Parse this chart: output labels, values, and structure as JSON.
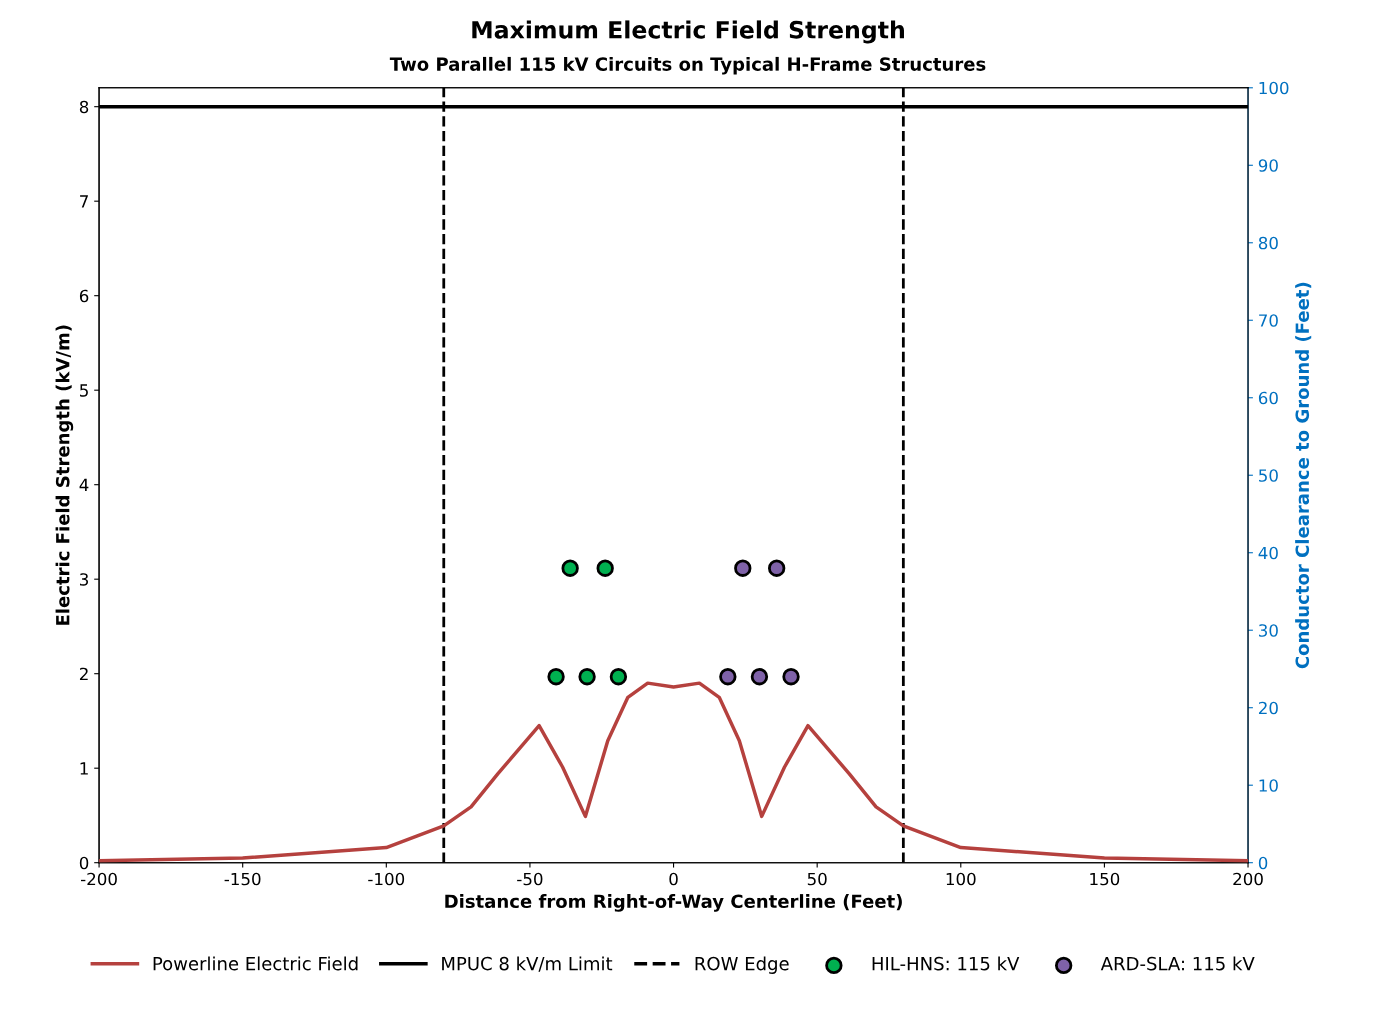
{
  "chart_data": {
    "type": "line",
    "title": "Maximum Electric Field Strength",
    "subtitle": "Two Parallel 115 kV Circuits on Typical H-Frame Structures",
    "xlabel": "Distance from Right-of-Way Centerline (Feet)",
    "ylabel": "Electric Field Strength (kV/m)",
    "y2label": "Conductor Clearance to Ground (Feet)",
    "xlim": [
      -200,
      200
    ],
    "xticks": [
      -200,
      -150,
      -100,
      -50,
      0,
      50,
      100,
      150,
      200
    ],
    "ylim": [
      0,
      8.2
    ],
    "yticks": [
      0,
      1,
      2,
      3,
      4,
      5,
      6,
      7,
      8
    ],
    "y2lim": [
      0,
      100
    ],
    "y2ticks": [
      0,
      10,
      20,
      30,
      40,
      50,
      60,
      70,
      80,
      90,
      100
    ],
    "grid": false,
    "legend": "bottom",
    "series": [
      {
        "name": "Powerline Electric Field",
        "color": "#b5413e",
        "marker": "none",
        "x": [
          -200,
          -150,
          -100,
          -80,
          -70.5,
          -61.2,
          -46.8,
          -38.6,
          -30.7,
          -22.9,
          -15.9,
          -9,
          0,
          9,
          15.9,
          22.9,
          30.7,
          38.6,
          46.8,
          61.2,
          70.5,
          80,
          100,
          150,
          200
        ],
        "values": [
          0.02,
          0.05,
          0.16,
          0.39,
          0.59,
          0.94,
          1.45,
          1.01,
          0.49,
          1.29,
          1.75,
          1.9,
          1.86,
          1.9,
          1.75,
          1.29,
          0.49,
          1.01,
          1.45,
          0.94,
          0.59,
          0.39,
          0.16,
          0.05,
          0.02
        ]
      },
      {
        "name": "HIL-HNS: 115 kV",
        "type": "scatter",
        "axis": "y2",
        "color": "#00b050",
        "marker": "circle",
        "x": [
          -36,
          -23.8,
          -40.9,
          -30.1,
          -19.2
        ],
        "values": [
          38,
          38,
          24,
          24,
          24
        ]
      },
      {
        "name": "ARD-SLA: 115 kV",
        "type": "scatter",
        "axis": "y2",
        "color": "#7f62a8",
        "marker": "circle",
        "x": [
          24.1,
          35.9,
          18.9,
          29.9,
          40.9
        ],
        "values": [
          38,
          38,
          24,
          24,
          24
        ]
      }
    ],
    "ref_lines": [
      {
        "axis": "y",
        "value": 8,
        "label": "MPUC 8 kV/m Limit",
        "color": "#000000",
        "line_style": "solid"
      },
      {
        "axis": "x",
        "value": -80,
        "label": "ROW Edge",
        "color": "#000000",
        "line_style": "dashed"
      },
      {
        "axis": "x",
        "value": 80,
        "label": null,
        "color": "#000000",
        "line_style": "dashed"
      }
    ]
  }
}
